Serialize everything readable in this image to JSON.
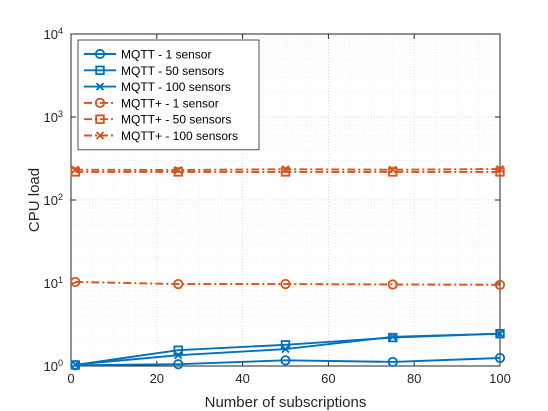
{
  "chart_data": {
    "type": "line",
    "title": "",
    "xlabel": "Number of subscriptions",
    "ylabel": "CPU load",
    "xlim": [
      0,
      100
    ],
    "ylim": [
      1,
      10000
    ],
    "yscale": "log",
    "grid": true,
    "minor_grid": true,
    "legend_position": "top-left",
    "x_ticks": [
      "0",
      "20",
      "40",
      "60",
      "80",
      "100"
    ],
    "y_ticks": [
      {
        "base": "10",
        "exp": "0"
      },
      {
        "base": "10",
        "exp": "1"
      },
      {
        "base": "10",
        "exp": "2"
      },
      {
        "base": "10",
        "exp": "3"
      },
      {
        "base": "10",
        "exp": "4"
      }
    ],
    "x": [
      1,
      25,
      50,
      75,
      100
    ],
    "series": [
      {
        "name": "MQTT - 1 sensor",
        "color": "#0072BD",
        "marker": "circle",
        "dash": "solid",
        "values": [
          1.02,
          1.05,
          1.17,
          1.12,
          1.25
        ]
      },
      {
        "name": "MQTT - 50 sensors",
        "color": "#0072BD",
        "marker": "square",
        "dash": "solid",
        "values": [
          1.03,
          1.55,
          1.8,
          2.2,
          2.45
        ]
      },
      {
        "name": "MQTT - 100 sensors",
        "color": "#0072BD",
        "marker": "x",
        "dash": "solid",
        "values": [
          1.04,
          1.35,
          1.6,
          2.25,
          2.45
        ]
      },
      {
        "name": "MQTT+ - 1 sensor",
        "color": "#D95319",
        "marker": "circle",
        "dash": "dashdot",
        "values": [
          10.3,
          9.7,
          9.7,
          9.6,
          9.5
        ]
      },
      {
        "name": "MQTT+ - 50 sensors",
        "color": "#D95319",
        "marker": "square",
        "dash": "dashdot",
        "values": [
          218,
          218,
          218,
          218,
          218
        ]
      },
      {
        "name": "MQTT+ - 100 sensors",
        "color": "#D95319",
        "marker": "x",
        "dash": "dashdot",
        "values": [
          232,
          230,
          235,
          232,
          236
        ]
      }
    ]
  }
}
